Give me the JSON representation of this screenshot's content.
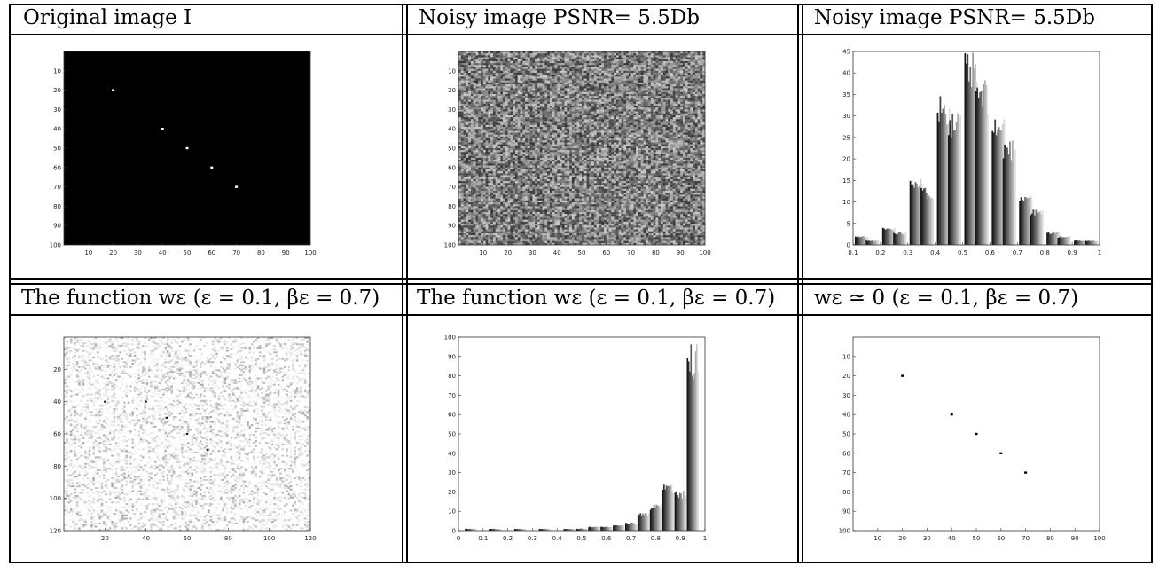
{
  "figure": {
    "row1": {
      "titles": [
        "Original image I",
        "Noisy image PSNR= 5.5Db",
        "Noisy image PSNR= 5.5Db"
      ]
    },
    "row2": {
      "titles": [
        "The function wε (ε = 0.1, βε = 0.7)",
        "The function wε (ε = 0.1, βε = 0.7)",
        "wε ≃ 0 (ε = 0.1, βε = 0.7)"
      ]
    }
  },
  "chart_data": [
    {
      "id": "original",
      "type": "heatmap",
      "xlim": [
        0,
        100
      ],
      "ylim": [
        0,
        100
      ],
      "xticks": [
        "10",
        "20",
        "30",
        "40",
        "50",
        "60",
        "70",
        "80",
        "90",
        "100"
      ],
      "yticks": [
        "10",
        "20",
        "30",
        "40",
        "50",
        "60",
        "70",
        "80",
        "90",
        "100"
      ],
      "background": "#000000",
      "points": [
        [
          20,
          20
        ],
        [
          40,
          40
        ],
        [
          50,
          50
        ],
        [
          60,
          60
        ],
        [
          70,
          70
        ]
      ],
      "point_color": "#ffffff"
    },
    {
      "id": "noisy",
      "type": "heatmap",
      "xlim": [
        0,
        100
      ],
      "ylim": [
        0,
        100
      ],
      "xticks": [
        "10",
        "20",
        "30",
        "40",
        "50",
        "60",
        "70",
        "80",
        "90",
        "100"
      ],
      "yticks": [
        "10",
        "20",
        "30",
        "40",
        "50",
        "60",
        "70",
        "80",
        "90",
        "100"
      ],
      "grid_cells": 100,
      "value_range": [
        0.2,
        0.8
      ]
    },
    {
      "id": "noisy_hist",
      "type": "bar",
      "xlim": [
        0.1,
        1.0
      ],
      "ylim": [
        0,
        45
      ],
      "xticks": [
        "0.1",
        "0.2",
        "0.3",
        "0.4",
        "0.5",
        "0.6",
        "0.7",
        "0.8",
        "0.9",
        "1"
      ],
      "yticks": [
        "0",
        "5",
        "10",
        "15",
        "20",
        "25",
        "30",
        "35",
        "40",
        "45"
      ],
      "x": [
        0.13,
        0.17,
        0.23,
        0.27,
        0.33,
        0.37,
        0.43,
        0.47,
        0.53,
        0.57,
        0.63,
        0.67,
        0.73,
        0.77,
        0.83,
        0.87,
        0.93,
        0.97
      ],
      "values": [
        2,
        1,
        4,
        3,
        16,
        13,
        34,
        30,
        43,
        37,
        29,
        24,
        12,
        8,
        3,
        2,
        1,
        1
      ]
    },
    {
      "id": "w_eps",
      "type": "heatmap",
      "xlim": [
        0,
        120
      ],
      "ylim": [
        0,
        120
      ],
      "xticks": [
        "20",
        "40",
        "60",
        "80",
        "100",
        "120"
      ],
      "yticks": [
        "20",
        "40",
        "60",
        "80",
        "100",
        "120"
      ],
      "points": [
        [
          20,
          40
        ],
        [
          40,
          40
        ],
        [
          50,
          50
        ],
        [
          60,
          60
        ],
        [
          70,
          70
        ]
      ],
      "value_range": [
        0.75,
        1.0
      ]
    },
    {
      "id": "w_hist",
      "type": "bar",
      "xlim": [
        0,
        1
      ],
      "ylim": [
        0,
        100
      ],
      "xticks": [
        "0",
        "0.1",
        "0.2",
        "0.3",
        "0.4",
        "0.5",
        "0.6",
        "0.7",
        "0.8",
        "0.9",
        "1"
      ],
      "yticks": [
        "0",
        "10",
        "20",
        "30",
        "40",
        "50",
        "60",
        "70",
        "80",
        "90",
        "100"
      ],
      "x": [
        0.05,
        0.15,
        0.25,
        0.35,
        0.45,
        0.5,
        0.55,
        0.6,
        0.65,
        0.7,
        0.75,
        0.8,
        0.85,
        0.9,
        0.95
      ],
      "values": [
        1,
        1,
        1,
        1,
        1,
        1,
        2,
        2,
        3,
        4,
        9,
        13,
        23,
        20,
        94
      ]
    },
    {
      "id": "w_zero",
      "type": "heatmap",
      "xlim": [
        0,
        100
      ],
      "ylim": [
        0,
        100
      ],
      "xticks": [
        "10",
        "20",
        "30",
        "40",
        "50",
        "60",
        "70",
        "80",
        "90",
        "100"
      ],
      "yticks": [
        "10",
        "20",
        "30",
        "40",
        "50",
        "60",
        "70",
        "80",
        "90",
        "100"
      ],
      "background": "#ffffff",
      "points": [
        [
          20,
          20
        ],
        [
          40,
          40
        ],
        [
          50,
          50
        ],
        [
          60,
          60
        ],
        [
          70,
          70
        ]
      ],
      "point_color": "#000000"
    }
  ]
}
